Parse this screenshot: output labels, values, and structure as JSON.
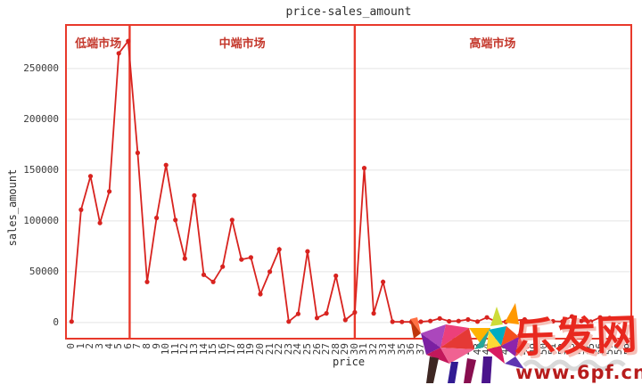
{
  "chart_data": {
    "type": "line",
    "title": "price-sales_amount",
    "xlabel": "price",
    "ylabel": "sales_amount",
    "x": [
      0,
      1,
      2,
      3,
      4,
      5,
      6,
      7,
      8,
      9,
      10,
      11,
      12,
      13,
      14,
      15,
      16,
      17,
      18,
      19,
      20,
      21,
      22,
      23,
      24,
      25,
      26,
      27,
      28,
      29,
      30,
      31,
      32,
      33,
      34,
      35,
      36,
      37,
      38,
      39,
      40,
      41,
      42,
      43,
      44,
      45,
      46,
      47,
      48,
      49,
      50,
      51,
      52,
      53,
      54,
      55,
      56,
      57,
      58,
      59
    ],
    "values": [
      1000,
      111000,
      144000,
      98000,
      129000,
      265000,
      277000,
      167000,
      40000,
      103000,
      155000,
      101000,
      63000,
      125000,
      47000,
      40000,
      55000,
      101000,
      62000,
      64000,
      28000,
      50000,
      72000,
      1000,
      8500,
      70000,
      4500,
      9000,
      46000,
      2500,
      10000,
      152000,
      9000,
      40000,
      800,
      600,
      600,
      800,
      1500,
      4000,
      1200,
      1500,
      3000,
      1000,
      5000,
      700,
      700,
      2000,
      3000,
      1000,
      700,
      1200,
      1000,
      6000,
      1500,
      1000,
      5000,
      4500,
      800,
      2200
    ],
    "y_ticks": [
      0,
      50000,
      100000,
      150000,
      200000,
      250000
    ],
    "ylim": [
      -15000,
      292000
    ],
    "xlim": [
      -0.5,
      59.2
    ],
    "grid": true,
    "legend": "none",
    "series_color": "#d8231f",
    "regions": [
      {
        "label": "低端市场",
        "from": -0.5,
        "to": 6.15
      },
      {
        "label": "中端市场",
        "from": 6.15,
        "to": 30
      },
      {
        "label": "高端市场",
        "from": 30,
        "to": 59.2
      }
    ]
  },
  "watermark": {
    "site_name": "乐发网",
    "url": "www.6pf.cn",
    "logo": "low-poly-bull-icon"
  },
  "colors": {
    "frame": "#e8392b",
    "line": "#d8231f",
    "grid": "#e4e4e4",
    "text": "#3a3a3a",
    "region_label": "#c4372b",
    "watermark_name": "#e8281e",
    "watermark_url": "#b71c1c"
  }
}
